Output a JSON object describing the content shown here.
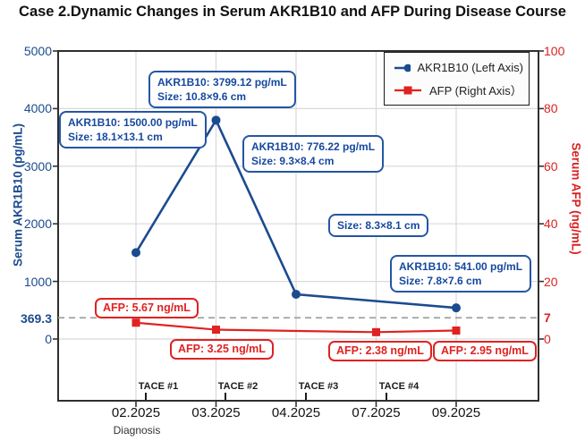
{
  "title": "Case 2.Dynamic Changes in Serum AKR1B10 and AFP During Disease Course",
  "left_axis": {
    "label": "Serum AKR1B10 (pg/mL)",
    "ticks": [
      "5000",
      "4000",
      "3000",
      "2000",
      "1000",
      "0"
    ],
    "cutoff_label": "369.3"
  },
  "right_axis": {
    "label": "Serum AFP (ng/mL)",
    "ticks": [
      "100",
      "80",
      "60",
      "40",
      "20",
      "0"
    ],
    "cutoff_label": "7"
  },
  "x_axis": {
    "labels": [
      "02.2025",
      "03.2025",
      "04.2025",
      "07.2025",
      "09.2025"
    ],
    "diagnosis_note": "Diagnosis"
  },
  "legend": {
    "items": [
      {
        "label": "AKR1B10 (Left Axis)",
        "color": "#1b4b8f",
        "marker": "circle"
      },
      {
        "label": "AFP (Right  Axis）",
        "color": "#e02222",
        "marker": "square"
      }
    ]
  },
  "tace_labels": [
    "TACE #1",
    "TACE #2",
    "TACE #3",
    "TACE #4"
  ],
  "annotations": {
    "akr": [
      {
        "line1": "AKR1B10: 1500.00 pg/mL",
        "line2": "Size: 18.1×13.1 cm"
      },
      {
        "line1": "AKR1B10: 3799.12 pg/mL",
        "line2": "Size: 10.8×9.6 cm"
      },
      {
        "line1": "AKR1B10: 776.22 pg/mL",
        "line2": "Size: 9.3×8.4 cm"
      },
      {
        "line1": "Size: 8.3×8.1 cm"
      },
      {
        "line1": "AKR1B10: 541.00 pg/mL",
        "line2": "Size: 7.8×7.6 cm"
      }
    ],
    "afp": [
      "AFP: 5.67 ng/mL",
      "AFP: 3.25 ng/mL",
      "AFP: 2.38 ng/mL",
      "AFP: 2.95 ng/mL"
    ]
  },
  "chart_data": {
    "type": "line",
    "title": "Case 2.Dynamic Changes in Serum AKR1B10 and AFP During Disease Course",
    "x_categories": [
      "02.2025",
      "03.2025",
      "04.2025",
      "07.2025",
      "09.2025"
    ],
    "series": [
      {
        "name": "AKR1B10 (Left Axis)",
        "axis": "left",
        "units": "pg/mL",
        "color": "#1b4b8f",
        "marker": "circle",
        "points": [
          {
            "x": "02.2025",
            "y": 1500.0
          },
          {
            "x": "03.2025",
            "y": 3799.12
          },
          {
            "x": "04.2025",
            "y": 776.22
          },
          {
            "x": "09.2025",
            "y": 541.0
          }
        ]
      },
      {
        "name": "AFP (Right  Axis）",
        "axis": "right",
        "units": "ng/mL",
        "color": "#e02222",
        "marker": "square",
        "points": [
          {
            "x": "02.2025",
            "y": 5.67
          },
          {
            "x": "03.2025",
            "y": 3.25
          },
          {
            "x": "07.2025",
            "y": 2.38
          },
          {
            "x": "09.2025",
            "y": 2.95
          }
        ]
      }
    ],
    "left_ylabel": "Serum AKR1B10 (pg/mL)",
    "right_ylabel": "Serum AFP (ng/mL)",
    "left_ylim": [
      0,
      5000
    ],
    "right_ylim": [
      0,
      100
    ],
    "cutoffs": {
      "left": 369.3,
      "right": 7
    },
    "tumor_size_cm": [
      "18.1×13.1",
      "10.8×9.6",
      "9.3×8.4",
      "8.3×8.1",
      "7.8×7.6"
    ],
    "tace_events": [
      "TACE #1",
      "TACE #2",
      "TACE #3",
      "TACE #4"
    ],
    "grid": true,
    "legend_position": "upper right",
    "cutoff_line_style": "gray dashed"
  }
}
